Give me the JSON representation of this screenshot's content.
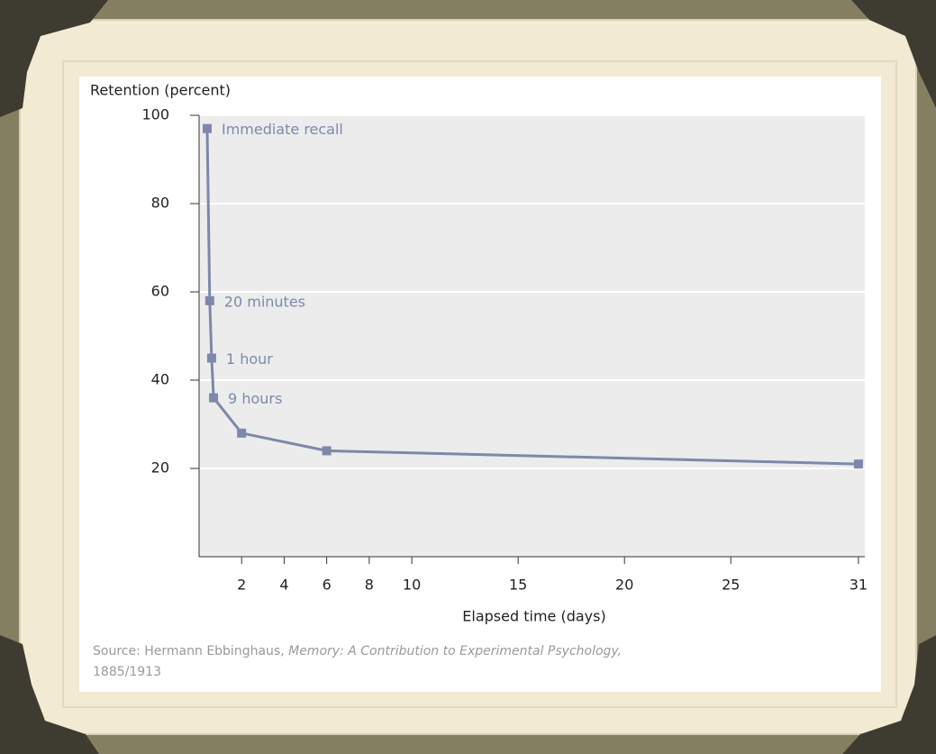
{
  "chart_data": {
    "type": "line",
    "y_axis_title": "Retention (percent)",
    "x_axis_title": "Elapsed time (days)",
    "x": [
      0.38,
      0.5,
      0.59,
      0.68,
      2,
      6,
      31
    ],
    "series": [
      {
        "color": "#7d89aa",
        "values": [
          97,
          58,
          45,
          36,
          28,
          24,
          21
        ]
      }
    ],
    "point_labels": [
      "Immediate recall",
      "20 minutes",
      "1 hour",
      "9 hours",
      null,
      null,
      null
    ],
    "xlim": [
      0,
      31.3
    ],
    "ylim": [
      0,
      100
    ],
    "xticks": [
      2,
      4,
      6,
      8,
      10,
      15,
      20,
      25,
      31
    ],
    "yticks": [
      20,
      40,
      60,
      80,
      100
    ],
    "grid": true,
    "source": {
      "prefix": "Source: Hermann Ebbinghaus, ",
      "title": "Memory: A Contribution to Experimental Psychology,",
      "year": "1885/1913"
    }
  }
}
